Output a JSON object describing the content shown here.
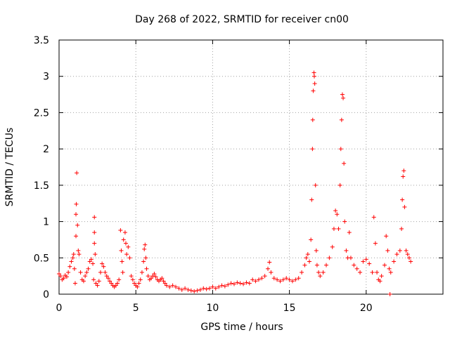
{
  "chart_data": {
    "type": "scatter",
    "title": "Day 268 of 2022, SRMTID for receiver cn00",
    "xlabel": "GPS time / hours",
    "ylabel": "SRMTID / TECUs",
    "xlim": [
      0,
      25
    ],
    "ylim": [
      0,
      3.5
    ],
    "xticks": [
      0,
      5,
      10,
      15,
      20
    ],
    "xtick_labels": [
      "0",
      "5",
      "10",
      "15",
      "20"
    ],
    "yticks": [
      0,
      0.5,
      1,
      1.5,
      2,
      2.5,
      3,
      3.5
    ],
    "ytick_labels": [
      "0",
      "0.5",
      "1",
      "1.5",
      "2",
      "2.5",
      "3",
      "3.5"
    ],
    "grid": true,
    "marker": "+",
    "color": "#ff0000",
    "series": [
      {
        "name": "SRMTID",
        "points": [
          [
            0.0,
            0.28
          ],
          [
            0.1,
            0.25
          ],
          [
            0.2,
            0.2
          ],
          [
            0.3,
            0.22
          ],
          [
            0.4,
            0.26
          ],
          [
            0.5,
            0.24
          ],
          [
            0.6,
            0.3
          ],
          [
            0.7,
            0.38
          ],
          [
            0.8,
            0.45
          ],
          [
            0.9,
            0.5
          ],
          [
            0.95,
            0.55
          ],
          [
            1.0,
            0.35
          ],
          [
            1.05,
            0.15
          ],
          [
            1.1,
            0.8
          ],
          [
            1.1,
            1.1
          ],
          [
            1.12,
            1.24
          ],
          [
            1.15,
            1.67
          ],
          [
            1.2,
            0.95
          ],
          [
            1.25,
            0.6
          ],
          [
            1.3,
            0.55
          ],
          [
            1.4,
            0.3
          ],
          [
            1.5,
            0.2
          ],
          [
            1.6,
            0.18
          ],
          [
            1.7,
            0.25
          ],
          [
            1.8,
            0.3
          ],
          [
            1.9,
            0.35
          ],
          [
            2.0,
            0.45
          ],
          [
            2.1,
            0.48
          ],
          [
            2.2,
            0.42
          ],
          [
            2.25,
            0.2
          ],
          [
            2.3,
            1.06
          ],
          [
            2.3,
            0.85
          ],
          [
            2.3,
            0.7
          ],
          [
            2.35,
            0.55
          ],
          [
            2.4,
            0.15
          ],
          [
            2.5,
            0.12
          ],
          [
            2.6,
            0.18
          ],
          [
            2.7,
            0.3
          ],
          [
            2.8,
            0.42
          ],
          [
            2.9,
            0.38
          ],
          [
            3.0,
            0.3
          ],
          [
            3.1,
            0.25
          ],
          [
            3.2,
            0.22
          ],
          [
            3.3,
            0.18
          ],
          [
            3.4,
            0.15
          ],
          [
            3.5,
            0.12
          ],
          [
            3.6,
            0.1
          ],
          [
            3.7,
            0.12
          ],
          [
            3.8,
            0.15
          ],
          [
            3.9,
            0.2
          ],
          [
            4.0,
            0.88
          ],
          [
            4.05,
            0.6
          ],
          [
            4.1,
            0.45
          ],
          [
            4.15,
            0.3
          ],
          [
            4.2,
            0.75
          ],
          [
            4.3,
            0.85
          ],
          [
            4.35,
            0.7
          ],
          [
            4.4,
            0.55
          ],
          [
            4.5,
            0.65
          ],
          [
            4.6,
            0.5
          ],
          [
            4.7,
            0.25
          ],
          [
            4.8,
            0.2
          ],
          [
            4.9,
            0.15
          ],
          [
            5.0,
            0.12
          ],
          [
            5.1,
            0.1
          ],
          [
            5.2,
            0.15
          ],
          [
            5.3,
            0.2
          ],
          [
            5.4,
            0.3
          ],
          [
            5.5,
            0.45
          ],
          [
            5.55,
            0.62
          ],
          [
            5.6,
            0.68
          ],
          [
            5.65,
            0.5
          ],
          [
            5.7,
            0.35
          ],
          [
            5.8,
            0.25
          ],
          [
            5.9,
            0.2
          ],
          [
            6.0,
            0.22
          ],
          [
            6.1,
            0.25
          ],
          [
            6.2,
            0.28
          ],
          [
            6.3,
            0.24
          ],
          [
            6.4,
            0.2
          ],
          [
            6.5,
            0.18
          ],
          [
            6.6,
            0.2
          ],
          [
            6.7,
            0.22
          ],
          [
            6.8,
            0.18
          ],
          [
            6.9,
            0.15
          ],
          [
            7.0,
            0.12
          ],
          [
            7.2,
            0.1
          ],
          [
            7.4,
            0.12
          ],
          [
            7.6,
            0.1
          ],
          [
            7.8,
            0.08
          ],
          [
            8.0,
            0.06
          ],
          [
            8.2,
            0.08
          ],
          [
            8.4,
            0.06
          ],
          [
            8.6,
            0.05
          ],
          [
            8.8,
            0.04
          ],
          [
            9.0,
            0.05
          ],
          [
            9.2,
            0.06
          ],
          [
            9.4,
            0.08
          ],
          [
            9.6,
            0.07
          ],
          [
            9.8,
            0.08
          ],
          [
            10.0,
            0.1
          ],
          [
            10.2,
            0.08
          ],
          [
            10.4,
            0.1
          ],
          [
            10.6,
            0.12
          ],
          [
            10.8,
            0.11
          ],
          [
            11.0,
            0.13
          ],
          [
            11.2,
            0.15
          ],
          [
            11.4,
            0.14
          ],
          [
            11.6,
            0.16
          ],
          [
            11.8,
            0.15
          ],
          [
            12.0,
            0.14
          ],
          [
            12.2,
            0.16
          ],
          [
            12.4,
            0.15
          ],
          [
            12.6,
            0.2
          ],
          [
            12.8,
            0.18
          ],
          [
            13.0,
            0.2
          ],
          [
            13.2,
            0.22
          ],
          [
            13.4,
            0.25
          ],
          [
            13.6,
            0.35
          ],
          [
            13.7,
            0.44
          ],
          [
            13.8,
            0.3
          ],
          [
            14.0,
            0.22
          ],
          [
            14.2,
            0.2
          ],
          [
            14.4,
            0.18
          ],
          [
            14.6,
            0.2
          ],
          [
            14.8,
            0.22
          ],
          [
            15.0,
            0.2
          ],
          [
            15.2,
            0.18
          ],
          [
            15.4,
            0.2
          ],
          [
            15.6,
            0.22
          ],
          [
            15.8,
            0.3
          ],
          [
            16.0,
            0.4
          ],
          [
            16.1,
            0.5
          ],
          [
            16.2,
            0.55
          ],
          [
            16.3,
            0.45
          ],
          [
            16.4,
            0.75
          ],
          [
            16.45,
            1.3
          ],
          [
            16.5,
            2.0
          ],
          [
            16.52,
            2.4
          ],
          [
            16.55,
            2.8
          ],
          [
            16.6,
            3.05
          ],
          [
            16.62,
            3.0
          ],
          [
            16.65,
            2.9
          ],
          [
            16.7,
            1.5
          ],
          [
            16.75,
            0.6
          ],
          [
            16.8,
            0.4
          ],
          [
            16.9,
            0.3
          ],
          [
            17.0,
            0.25
          ],
          [
            17.2,
            0.3
          ],
          [
            17.4,
            0.4
          ],
          [
            17.6,
            0.5
          ],
          [
            17.8,
            0.65
          ],
          [
            17.9,
            0.9
          ],
          [
            18.0,
            1.15
          ],
          [
            18.1,
            1.1
          ],
          [
            18.2,
            0.9
          ],
          [
            18.3,
            1.5
          ],
          [
            18.35,
            2.0
          ],
          [
            18.4,
            2.4
          ],
          [
            18.45,
            2.75
          ],
          [
            18.5,
            2.7
          ],
          [
            18.55,
            1.8
          ],
          [
            18.6,
            1.0
          ],
          [
            18.7,
            0.6
          ],
          [
            18.8,
            0.5
          ],
          [
            18.9,
            0.85
          ],
          [
            19.0,
            0.5
          ],
          [
            19.2,
            0.4
          ],
          [
            19.4,
            0.35
          ],
          [
            19.6,
            0.3
          ],
          [
            19.8,
            0.45
          ],
          [
            20.0,
            0.48
          ],
          [
            20.2,
            0.42
          ],
          [
            20.4,
            0.3
          ],
          [
            20.5,
            1.06
          ],
          [
            20.6,
            0.7
          ],
          [
            20.7,
            0.3
          ],
          [
            20.8,
            0.2
          ],
          [
            20.9,
            0.18
          ],
          [
            21.0,
            0.25
          ],
          [
            21.2,
            0.4
          ],
          [
            21.3,
            0.8
          ],
          [
            21.4,
            0.6
          ],
          [
            21.5,
            0.35
          ],
          [
            21.55,
            0.0
          ],
          [
            21.6,
            0.3
          ],
          [
            21.8,
            0.45
          ],
          [
            22.0,
            0.55
          ],
          [
            22.2,
            0.6
          ],
          [
            22.3,
            0.9
          ],
          [
            22.35,
            1.3
          ],
          [
            22.4,
            1.62
          ],
          [
            22.45,
            1.7
          ],
          [
            22.5,
            1.2
          ],
          [
            22.6,
            0.6
          ],
          [
            22.7,
            0.55
          ],
          [
            22.8,
            0.5
          ],
          [
            22.9,
            0.45
          ]
        ]
      }
    ]
  }
}
